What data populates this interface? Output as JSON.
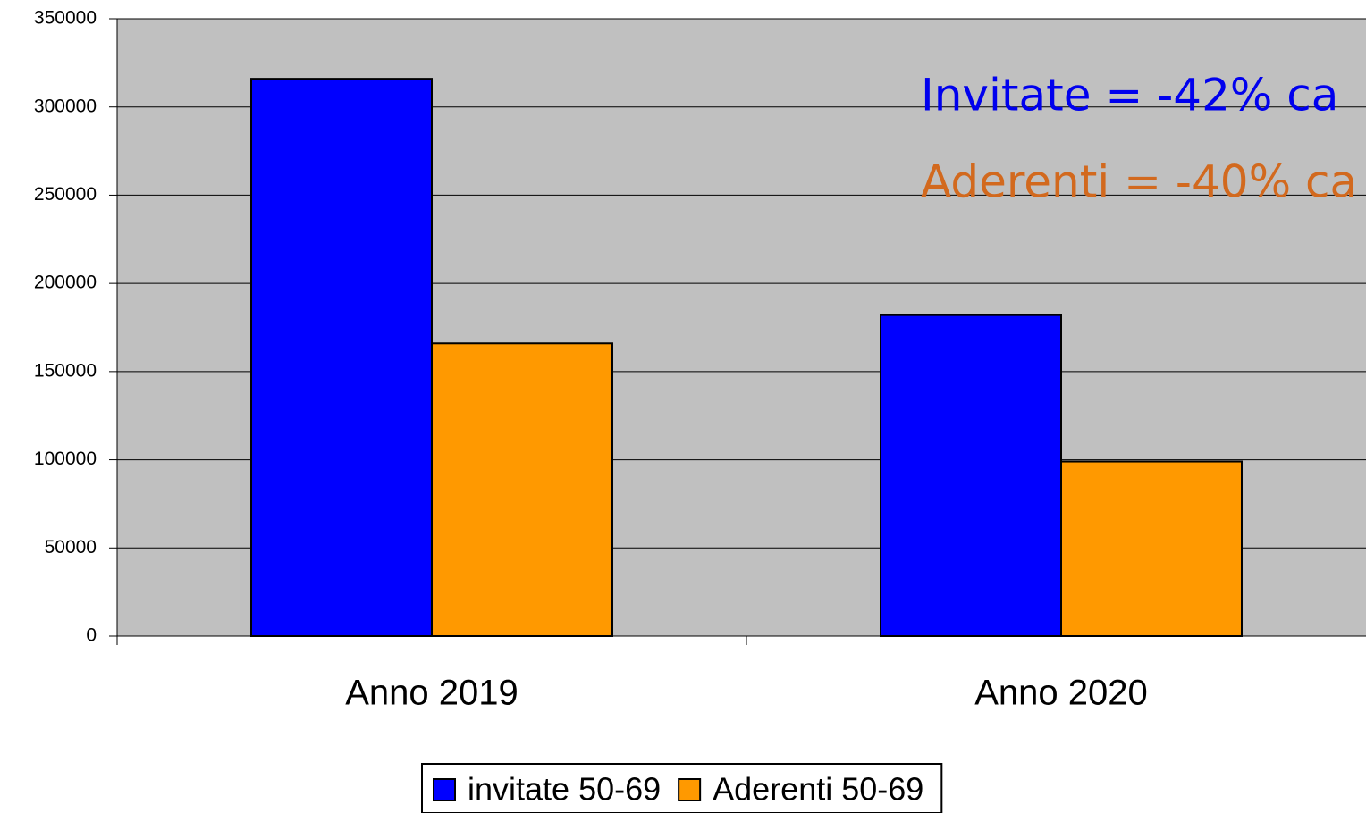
{
  "chart_data": {
    "type": "bar",
    "categories": [
      "Anno 2019",
      "Anno 2020"
    ],
    "series": [
      {
        "name": "invitate 50-69",
        "color": "#0000ff",
        "values": [
          316000,
          182000
        ]
      },
      {
        "name": "Aderenti 50-69",
        "color": "#ff9900",
        "values": [
          166000,
          99000
        ]
      }
    ],
    "ylim": [
      0,
      350000
    ],
    "yticks": [
      0,
      50000,
      100000,
      150000,
      200000,
      250000,
      300000,
      350000
    ],
    "grid": true,
    "plot_background": "#c0c0c0",
    "legend": "bottom",
    "annotations": [
      {
        "text": "Invitate = -42% ca",
        "color": "#0000ee"
      },
      {
        "text": "Aderenti = -40% ca",
        "color": "#d2691e"
      }
    ]
  }
}
